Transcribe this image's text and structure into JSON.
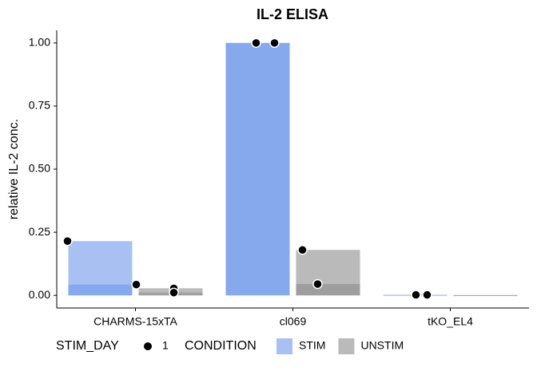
{
  "chart_data": {
    "type": "bar",
    "title": "IL-2 ELISA",
    "ylabel": "relative IL-2 conc.",
    "categories": [
      "CHARMS-15xTA",
      "cl069",
      "tKO_EL4"
    ],
    "series": [
      {
        "name": "STIM",
        "color": "#6f98ea",
        "values": [
          [
            0.215,
            0.043
          ],
          [
            1.0,
            1.0
          ],
          [
            0.002,
            0.002
          ]
        ]
      },
      {
        "name": "UNSTIM",
        "color": "#8c8c8c",
        "values": [
          [
            0.028,
            0.011
          ],
          [
            0.18,
            0.045
          ],
          [
            0.001,
            0.001
          ]
        ]
      }
    ],
    "ylim": [
      -0.05,
      1.05
    ],
    "yticks": [
      {
        "value": 0,
        "label": "0.00"
      },
      {
        "value": 0.25,
        "label": "0.25"
      },
      {
        "value": 0.5,
        "label": "0.50"
      },
      {
        "value": 0.75,
        "label": "0.75"
      },
      {
        "value": 1,
        "label": "1.00"
      }
    ],
    "point_legend_title": "STIM_DAY",
    "point_legend_label": "1",
    "legend_title": "CONDITION"
  }
}
